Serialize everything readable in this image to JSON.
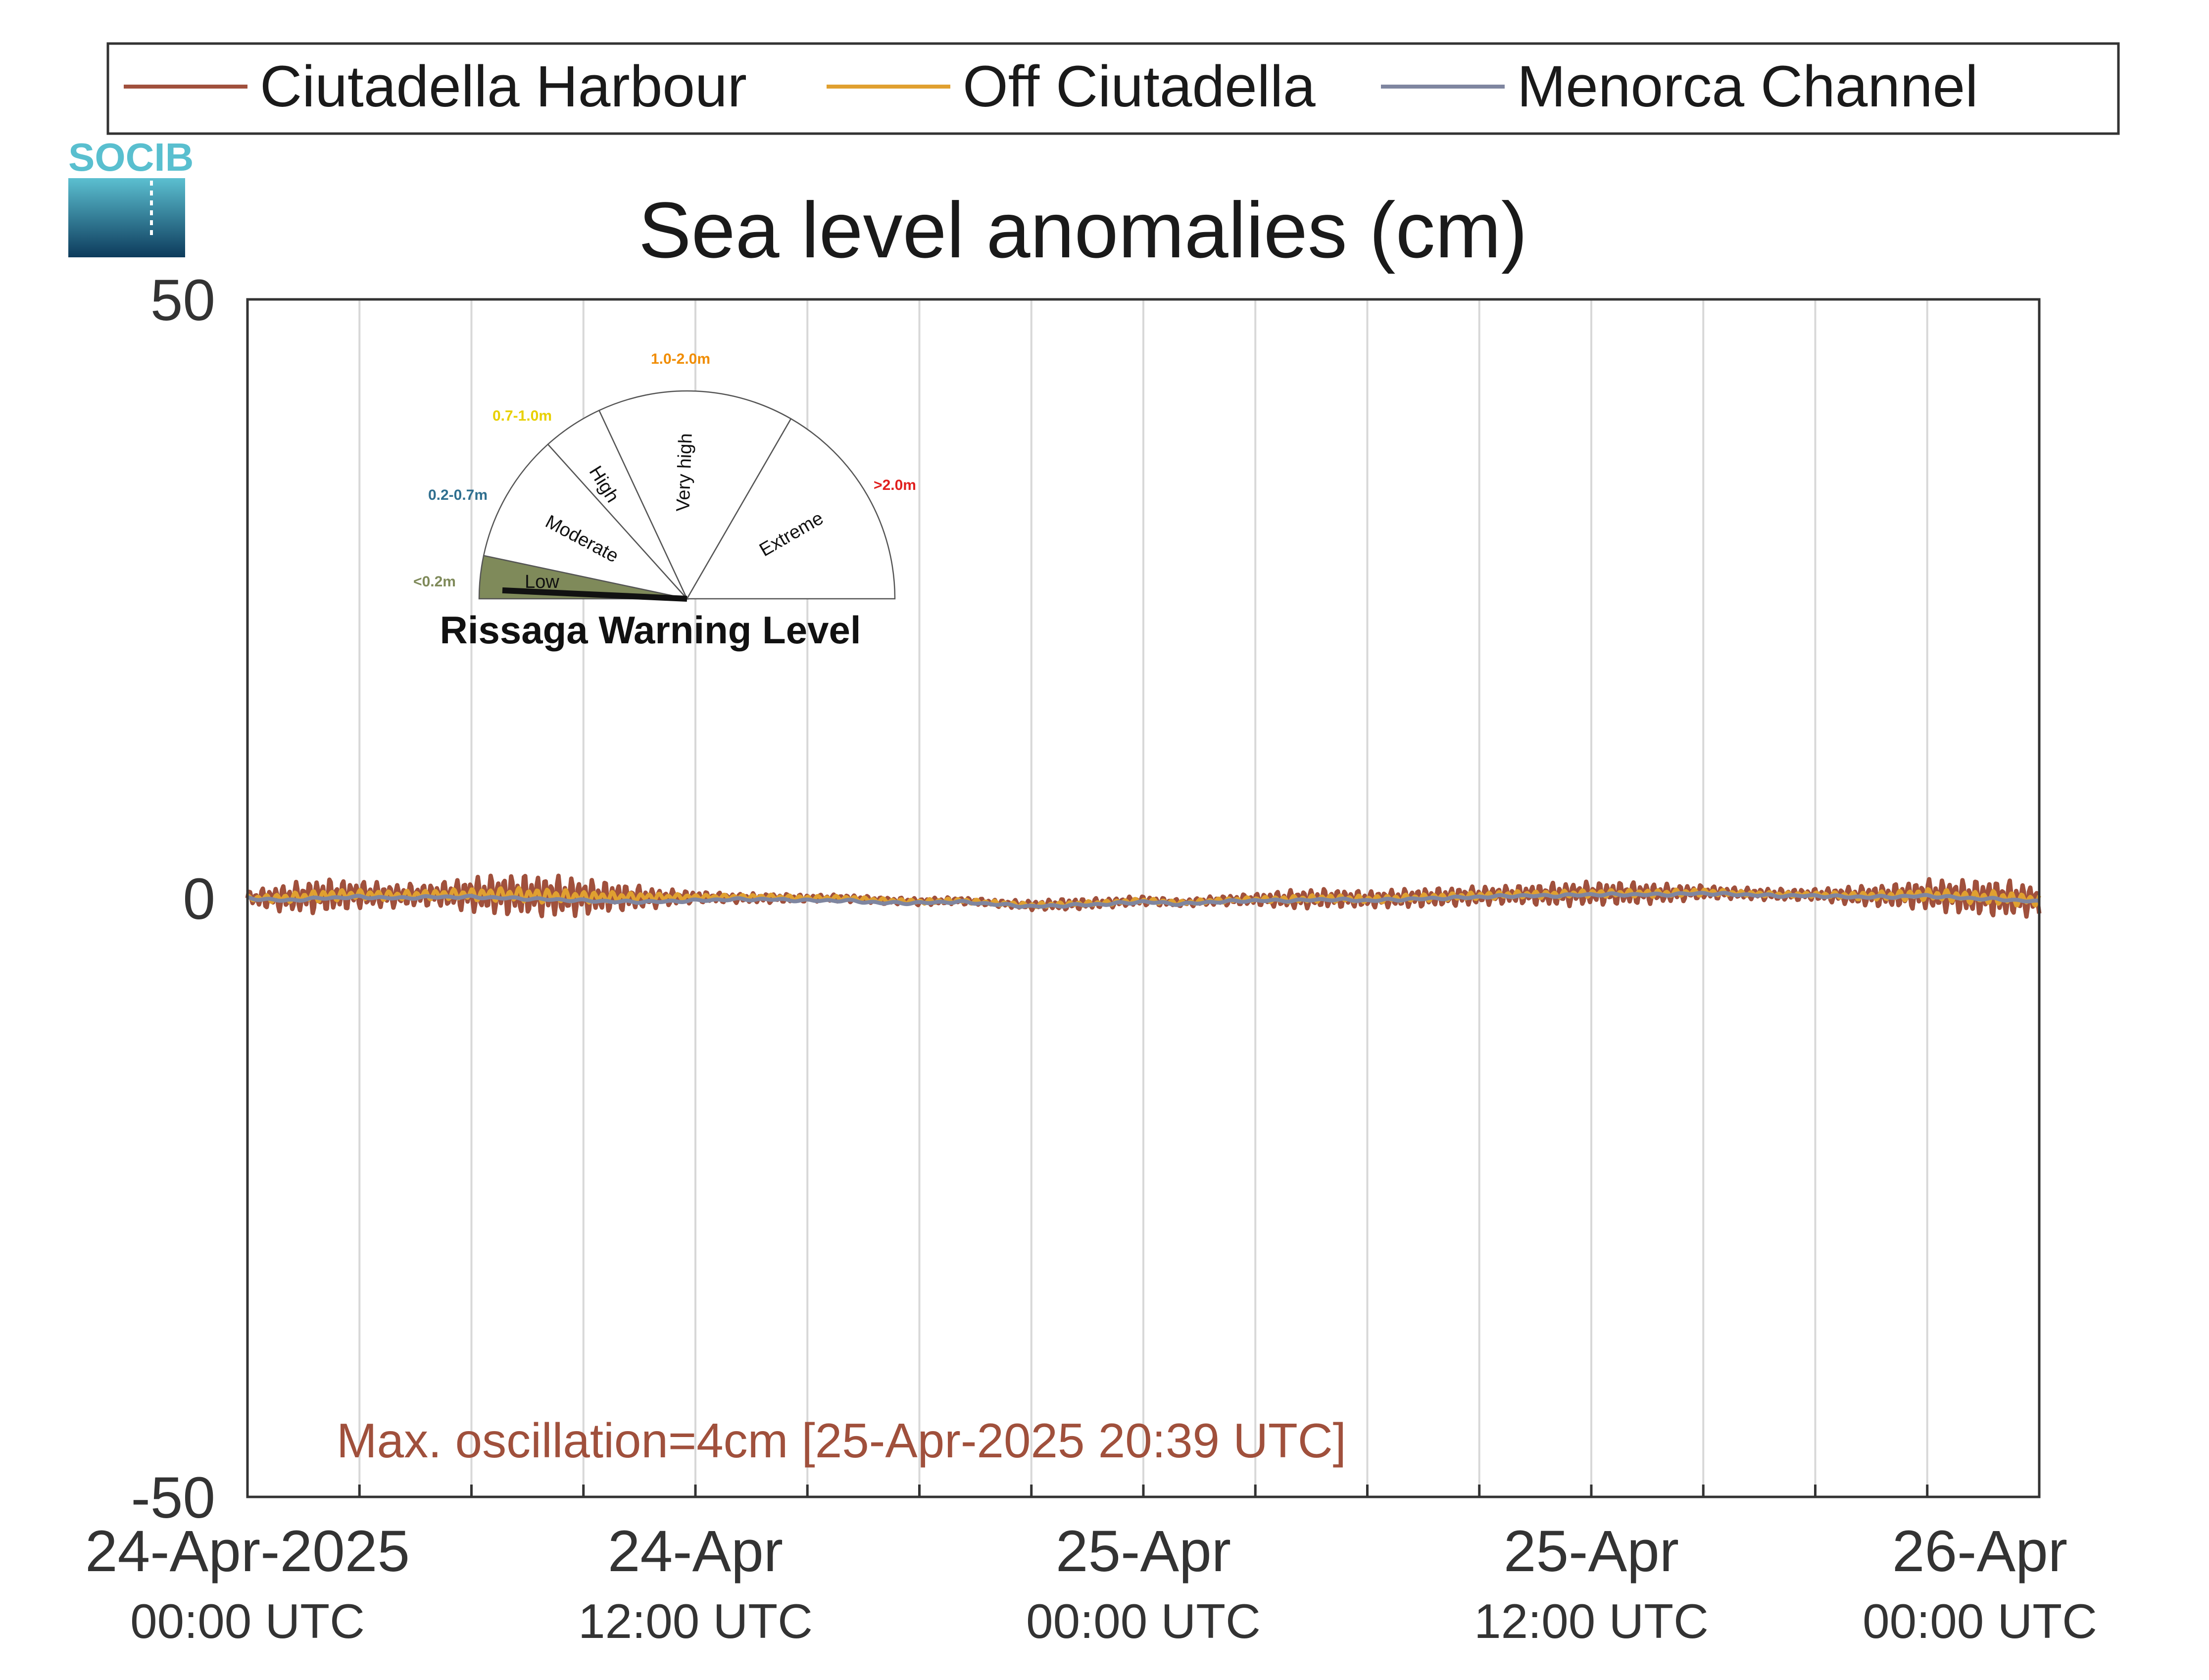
{
  "legend": {
    "items": [
      {
        "label": "Ciutadella Harbour",
        "color": "#a0503c"
      },
      {
        "label": "Off Ciutadella",
        "color": "#e0a030"
      },
      {
        "label": "Menorca Channel",
        "color": "#7f86a0"
      }
    ]
  },
  "logo": {
    "text": "SOCIB"
  },
  "gauge": {
    "title": "Rissaga Warning Level",
    "segments": [
      {
        "label": "Low",
        "range": "<0.2m",
        "range_color": "#7f8a5a",
        "fill": "#7f8a5a"
      },
      {
        "label": "Moderate",
        "range": "0.2-0.7m",
        "range_color": "#2f6f8f",
        "fill": "#ffffff"
      },
      {
        "label": "High",
        "range": "0.7-1.0m",
        "range_color": "#e8d000",
        "fill": "#ffffff"
      },
      {
        "label": "Very high",
        "range": "1.0-2.0m",
        "range_color": "#f08c00",
        "fill": "#ffffff"
      },
      {
        "label": "Extreme",
        "range": ">2.0m",
        "range_color": "#e0201e",
        "fill": "#ffffff"
      }
    ],
    "needle_level": "Low"
  },
  "annotation": {
    "text": "Max. oscillation=4cm [25-Apr-2025 20:39 UTC]",
    "color": "#a0503c"
  },
  "chart_data": {
    "type": "line",
    "title": "Sea level anomalies (cm)",
    "xlabel": "",
    "ylabel": "",
    "ylim": [
      -50,
      50
    ],
    "xlim": [
      "2025-04-24T00:00Z",
      "2025-04-26T00:00Z"
    ],
    "yticks": [
      "50",
      "0",
      "-50"
    ],
    "xticks": [
      {
        "line1": "24-Apr-2025",
        "line2": "00:00 UTC"
      },
      {
        "line1": "24-Apr",
        "line2": "12:00 UTC"
      },
      {
        "line1": "25-Apr",
        "line2": "00:00 UTC"
      },
      {
        "line1": "25-Apr",
        "line2": "12:00 UTC"
      },
      {
        "line1": "26-Apr",
        "line2": "00:00 UTC"
      }
    ],
    "grid": "vertical every 3 hours",
    "legend_position": "top",
    "x_hours": [
      0,
      1,
      2,
      3,
      4,
      5,
      6,
      7,
      8,
      9,
      10,
      11,
      12,
      13,
      14,
      15,
      16,
      17,
      18,
      19,
      20,
      21,
      22,
      23,
      24,
      25,
      26,
      27,
      28,
      29,
      30,
      31,
      32,
      33,
      34,
      35,
      36,
      37,
      38,
      39,
      40,
      41,
      42,
      43,
      44,
      45,
      46,
      47,
      48
    ],
    "series": [
      {
        "name": "Ciutadella Harbour",
        "color": "#a0503c",
        "amplitude_cm": [
          0.6,
          1.2,
          1.5,
          1.2,
          1.0,
          1.0,
          1.5,
          1.8,
          1.8,
          1.6,
          1.2,
          0.8,
          0.5,
          0.4,
          0.4,
          0.3,
          0.3,
          0.3,
          0.3,
          0.3,
          0.3,
          0.4,
          0.5,
          0.4,
          0.4,
          0.3,
          0.4,
          0.5,
          0.8,
          0.8,
          0.7,
          0.8,
          0.8,
          0.8,
          0.8,
          1.0,
          1.0,
          1.0,
          0.8,
          0.6,
          0.5,
          0.5,
          0.5,
          0.8,
          1.0,
          1.3,
          1.5,
          1.6,
          1.3
        ],
        "mean_cm": [
          0,
          0,
          0.2,
          0.3,
          0.2,
          0.3,
          0.3,
          0.3,
          0.2,
          0.1,
          0.1,
          0,
          0.1,
          0,
          0,
          0,
          0,
          -0.2,
          -0.3,
          -0.2,
          -0.4,
          -0.6,
          -0.5,
          -0.4,
          -0.2,
          -0.4,
          -0.2,
          -0.1,
          -0.1,
          0,
          -0.1,
          0,
          0.1,
          0.2,
          0.3,
          0.3,
          0.4,
          0.4,
          0.4,
          0.5,
          0.4,
          0.3,
          0.3,
          0.2,
          0.2,
          0.3,
          0.1,
          0,
          -0.2
        ]
      },
      {
        "name": "Off Ciutadella",
        "color": "#e0a030",
        "amplitude_cm": [
          0.2,
          0.4,
          0.5,
          0.4,
          0.4,
          0.4,
          0.5,
          0.6,
          0.6,
          0.5,
          0.4,
          0.3,
          0.2,
          0.2,
          0.2,
          0.2,
          0.2,
          0.2,
          0.2,
          0.2,
          0.2,
          0.2,
          0.2,
          0.2,
          0.2,
          0.2,
          0.2,
          0.2,
          0.3,
          0.3,
          0.3,
          0.3,
          0.3,
          0.3,
          0.3,
          0.3,
          0.3,
          0.3,
          0.3,
          0.3,
          0.2,
          0.2,
          0.2,
          0.3,
          0.4,
          0.5,
          0.5,
          0.6,
          0.5
        ],
        "mean_cm": [
          0,
          0,
          0.2,
          0.3,
          0.2,
          0.3,
          0.3,
          0.3,
          0.2,
          0.1,
          0.1,
          0.1,
          0.1,
          0.1,
          0.1,
          0,
          0,
          -0.2,
          -0.3,
          -0.2,
          -0.4,
          -0.6,
          -0.5,
          -0.4,
          -0.2,
          -0.4,
          -0.2,
          -0.1,
          -0.1,
          0,
          -0.1,
          0,
          0.1,
          0.2,
          0.3,
          0.3,
          0.4,
          0.4,
          0.4,
          0.5,
          0.4,
          0.3,
          0.3,
          0.2,
          0.2,
          0.3,
          0.1,
          0,
          -0.2
        ]
      },
      {
        "name": "Menorca Channel",
        "color": "#7f86a0",
        "amplitude_cm": [
          0.1,
          0.1,
          0.1,
          0.1,
          0.1,
          0.1,
          0.1,
          0.1,
          0.1,
          0.1,
          0.1,
          0.1,
          0.1,
          0.1,
          0.1,
          0.1,
          0.1,
          0.1,
          0.1,
          0.1,
          0.1,
          0.1,
          0.1,
          0.1,
          0.1,
          0.1,
          0.1,
          0.1,
          0.1,
          0.1,
          0.1,
          0.1,
          0.1,
          0.1,
          0.1,
          0.1,
          0.1,
          0.1,
          0.1,
          0.1,
          0.1,
          0.1,
          0.1,
          0.1,
          0.1,
          0.1,
          0.1,
          0.1,
          0.1
        ],
        "mean_cm": [
          0,
          -0.2,
          0,
          0.1,
          0,
          0.1,
          0.1,
          0,
          -0.1,
          -0.2,
          -0.3,
          -0.3,
          -0.2,
          -0.1,
          -0.1,
          -0.2,
          -0.2,
          -0.4,
          -0.4,
          -0.3,
          -0.5,
          -0.7,
          -0.6,
          -0.5,
          -0.3,
          -0.5,
          -0.3,
          -0.2,
          -0.2,
          -0.1,
          -0.2,
          -0.1,
          0,
          0.1,
          0.2,
          0.2,
          0.3,
          0.3,
          0.3,
          0.4,
          0.3,
          0.2,
          0.2,
          0.1,
          0.1,
          0.2,
          0,
          -0.1,
          -0.3
        ]
      }
    ]
  }
}
